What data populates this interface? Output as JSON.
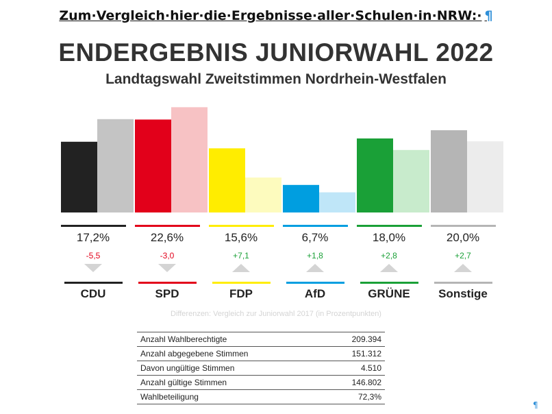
{
  "note": "Zum·Vergleich·hier·die·Ergebnisse·aller·Schulen·in·NRW:·",
  "note_mark": "¶",
  "end_mark": "¶",
  "chart_data": {
    "type": "bar",
    "title": "ENDERGEBNIS JUNIORWAHL 2022",
    "subtitle": "Landtagswahl Zweitstimmen Nordrhein-Westfalen",
    "categories": [
      "CDU",
      "SPD",
      "FDP",
      "AfD",
      "GRÜNE",
      "Sonstige"
    ],
    "series": [
      {
        "values": [
          17.2,
          22.6,
          15.6,
          6.7,
          18.0,
          20.0
        ]
      },
      {
        "values": [
          22.7,
          25.6,
          8.5,
          4.9,
          15.2,
          17.3
        ]
      }
    ],
    "value_labels": [
      "17,2%",
      "22,6%",
      "15,6%",
      "6,7%",
      "18,0%",
      "20,0%"
    ],
    "diff_labels": [
      "-5,5",
      "-3,0",
      "+7,1",
      "+1,8",
      "+2,8",
      "+2,7"
    ],
    "diff_direction": [
      "down",
      "down",
      "up",
      "up",
      "up",
      "up"
    ],
    "colors": [
      "#222222",
      "#e2001a",
      "#ffed00",
      "#009ee0",
      "#1aa037",
      "#b5b5b5"
    ],
    "colors_light": [
      "#c4c4c4",
      "#f7c2c4",
      "#fdfbbe",
      "#bfe6f8",
      "#c8ebcc",
      "#ececec"
    ],
    "diff_colors": {
      "down": "#e2001a",
      "up": "#1aa037"
    },
    "footnote": "Differenzen: Vergleich zur Juniorwahl 2017 (in Prozentpunkten)"
  },
  "stats": [
    {
      "label": "Anzahl Wahlberechtigte",
      "value": "209.394"
    },
    {
      "label": "Anzahl abgegebene Stimmen",
      "value": "151.312"
    },
    {
      "label": "Davon ungültige Stimmen",
      "value": "4.510"
    },
    {
      "label": "Anzahl gültige Stimmen",
      "value": "146.802"
    },
    {
      "label": "Wahlbeteiligung",
      "value": "72,3%"
    }
  ]
}
